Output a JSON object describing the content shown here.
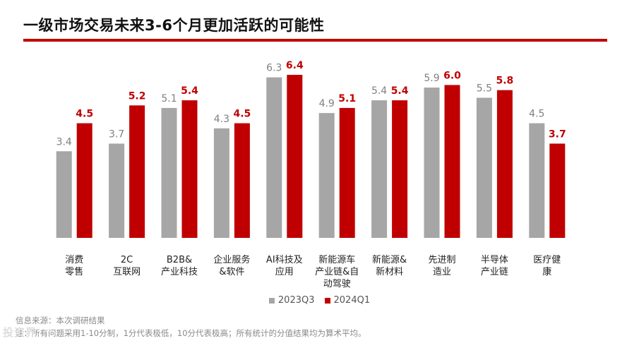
{
  "header": {
    "title": "一级市场交易未来3-6个月更加活跃的可能性"
  },
  "footer": {
    "source": "信息来源：本次调研结果",
    "note": "注：所有问题采用1-10分制，1分代表极低，10分代表极高；所有统计的分值结果均为算术平均。",
    "watermark": "投资界"
  },
  "colors": {
    "series1": "#a6a6a6",
    "series2": "#c00000",
    "accent": "#c00000"
  },
  "chart_data": {
    "type": "bar",
    "title": "一级市场交易未来3-6个月更加活跃的可能性",
    "categories": [
      [
        "消费",
        "零售"
      ],
      [
        "2C",
        "互联网"
      ],
      [
        "B2B&",
        "产业科技"
      ],
      [
        "企业服务",
        "&软件"
      ],
      [
        "AI科技及",
        "应用"
      ],
      [
        "新能源车",
        "产业链&自",
        "动驾驶"
      ],
      [
        "新能源&",
        "新材料"
      ],
      [
        "先进制",
        "造业"
      ],
      [
        "半导体",
        "产业链"
      ],
      [
        "医疗健",
        "康"
      ]
    ],
    "series": [
      {
        "name": "2023Q3",
        "values": [
          3.4,
          3.7,
          5.1,
          4.3,
          6.3,
          4.9,
          5.4,
          5.9,
          5.5,
          4.5
        ],
        "labels": [
          "3.4",
          "3.7",
          "5.1",
          "4.3",
          "6.3",
          "4.9",
          "5.4",
          "5.9",
          "5.5",
          "4.5"
        ]
      },
      {
        "name": "2024Q1",
        "values": [
          4.5,
          5.2,
          5.4,
          4.5,
          6.4,
          5.1,
          5.4,
          6.0,
          5.8,
          3.7
        ],
        "labels": [
          "4.5",
          "5.2",
          "5.4",
          "4.5",
          "6.4",
          "5.1",
          "5.4",
          "6.0",
          "5.8",
          "3.7"
        ]
      }
    ],
    "ylim": [
      0,
      6.4
    ],
    "grid": false,
    "legend_position": "bottom-center"
  }
}
